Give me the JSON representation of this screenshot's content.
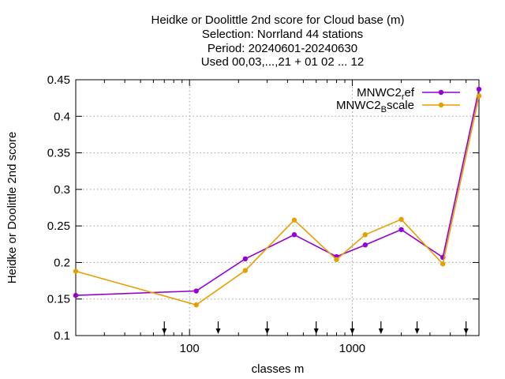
{
  "chart_data": {
    "type": "line",
    "title_lines": [
      "Heidke or Doolittle 2nd score  for Cloud base (m)",
      "Selection: Norrland     44 stations",
      "Period: 20240601-20240630",
      "Used 00,03,...,21 + 01 02 ... 12"
    ],
    "xlabel": "classes m",
    "ylabel": "Heidke or Doolittle 2nd score",
    "x_scale": "log",
    "xlim": [
      20,
      6000
    ],
    "ylim": [
      0.1,
      0.45
    ],
    "x_tick_values": [
      100,
      1000
    ],
    "x_tick_labels": [
      "100",
      "1000"
    ],
    "y_tick_values": [
      0.1,
      0.15,
      0.2,
      0.25,
      0.3,
      0.35,
      0.4,
      0.45
    ],
    "y_tick_labels": [
      "0.1",
      "0.15",
      "0.2",
      "0.25",
      "0.3",
      "0.35",
      "0.4",
      "0.45"
    ],
    "grid": true,
    "legend_position": "top-right",
    "arrow_marks_x": [
      70,
      150,
      300,
      600,
      1000,
      1500,
      2500,
      5000
    ],
    "series": [
      {
        "name_base": "MNWC2",
        "name_sub": "r",
        "name_rest": "ef",
        "color": "#9400d3",
        "x": [
          20,
          110,
          220,
          440,
          800,
          1200,
          2000,
          3600,
          6000
        ],
        "y": [
          0.155,
          0.161,
          0.205,
          0.238,
          0.208,
          0.224,
          0.245,
          0.207,
          0.437
        ]
      },
      {
        "name_base": "MNWC2",
        "name_sub": "B",
        "name_rest": "scale",
        "color": "#e69f00",
        "x": [
          20,
          110,
          220,
          440,
          800,
          1200,
          2000,
          3600,
          6000
        ],
        "y": [
          0.188,
          0.142,
          0.189,
          0.258,
          0.204,
          0.238,
          0.259,
          0.198,
          0.428
        ]
      }
    ]
  }
}
